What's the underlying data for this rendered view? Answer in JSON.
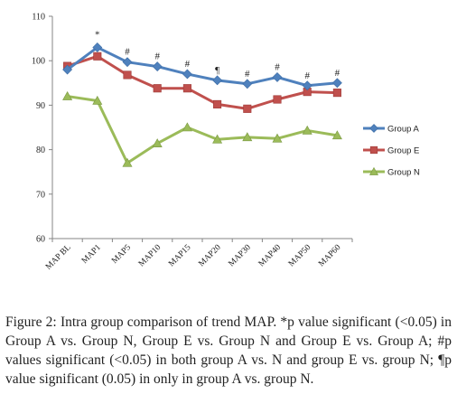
{
  "chart_data": {
    "type": "line",
    "categories": [
      "MAP BL",
      "MAP1",
      "MAP5",
      "MAP10",
      "MAP15",
      "MAP20",
      "MAP30",
      "MAP40",
      "MAP50",
      "MAP60"
    ],
    "ylim": [
      60,
      110
    ],
    "yticks": [
      60,
      70,
      80,
      90,
      100,
      110
    ],
    "series": [
      {
        "name": "Group A",
        "color": "#4f81bd",
        "marker": "diamond",
        "values": [
          98,
          103,
          99.7,
          98.7,
          97,
          95.6,
          94.8,
          96.3,
          94.4,
          95
        ]
      },
      {
        "name": "Group E",
        "color": "#c0504d",
        "marker": "square",
        "values": [
          98.8,
          101,
          96.8,
          93.8,
          93.8,
          90.2,
          89.2,
          91.3,
          93,
          92.8
        ]
      },
      {
        "name": "Group N",
        "color": "#9bbb59",
        "marker": "triangle",
        "values": [
          92,
          91,
          77,
          81.4,
          85,
          82.3,
          82.8,
          82.5,
          84.3,
          83.2
        ]
      }
    ],
    "annotations": [
      "",
      "*",
      "#",
      "#",
      "#",
      "¶",
      "#",
      "#",
      "#",
      "#"
    ],
    "legend_position": "right",
    "grid": false
  },
  "caption": {
    "label": "Figure 2:",
    "text": " Intra group comparison of trend MAP. *p value significant (<0.05) in Group A vs. Group N, Group E vs. Group N and Group E vs. Group A; #p values significant (<0.05) in both group A vs. N and group E vs. group N; ¶p value significant (0.05) in only in group A vs. group N."
  }
}
